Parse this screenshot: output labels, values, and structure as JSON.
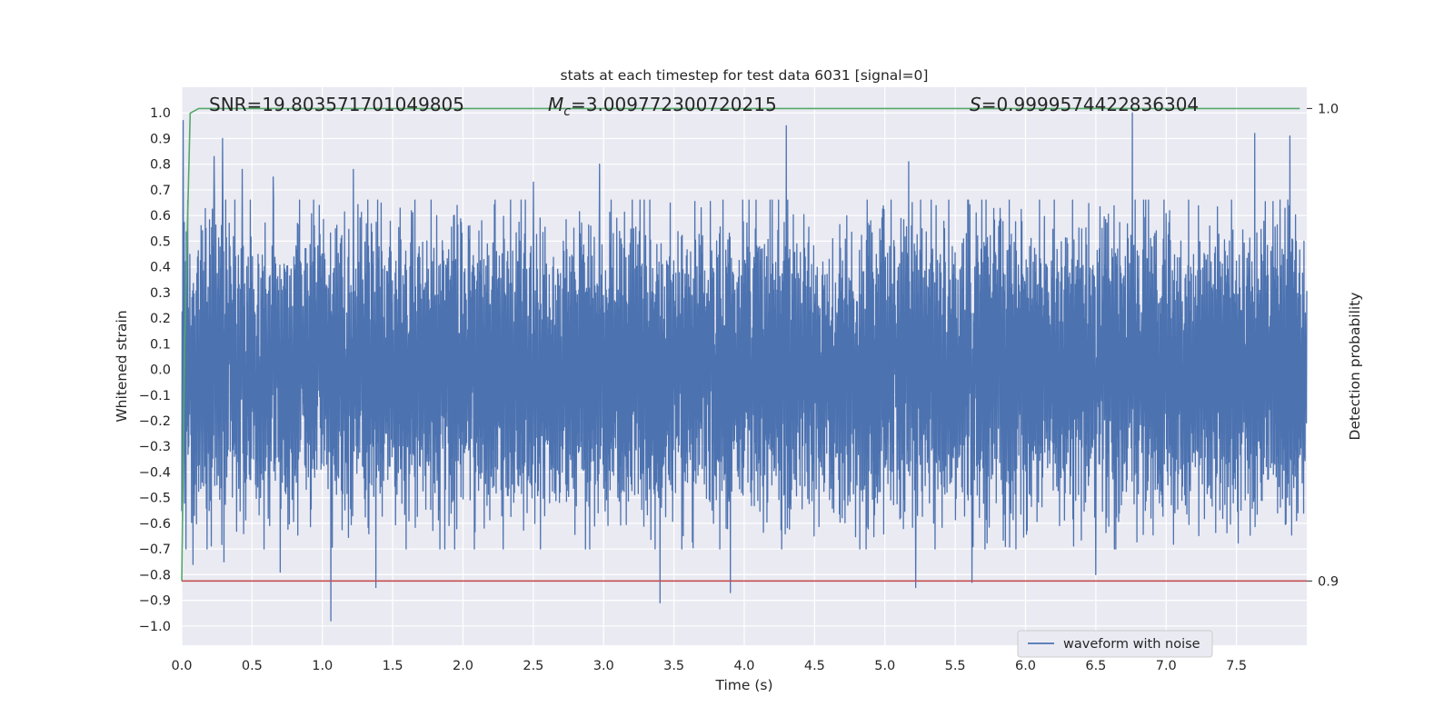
{
  "chart_data": {
    "type": "line",
    "title": "stats at each timestep for test data 6031 [signal=0]",
    "xlabel": "Time (s)",
    "ylabel": "Whitened strain",
    "y2label": "Detection probability",
    "xlim": [
      0,
      8.0
    ],
    "ylim": [
      -1.075,
      1.1
    ],
    "y2lim": [
      0.8864,
      1.0045
    ],
    "x_ticks": [
      "0.0",
      "0.5",
      "1.0",
      "1.5",
      "2.0",
      "2.5",
      "3.0",
      "3.5",
      "4.0",
      "4.5",
      "5.0",
      "5.5",
      "6.0",
      "6.5",
      "7.0",
      "7.5"
    ],
    "y_ticks": [
      "−1.0",
      "−0.9",
      "−0.8",
      "−0.7",
      "−0.6",
      "−0.5",
      "−0.4",
      "−0.3",
      "−0.2",
      "−0.1",
      "0.0",
      "0.1",
      "0.2",
      "0.3",
      "0.4",
      "0.5",
      "0.6",
      "0.7",
      "0.8",
      "0.9",
      "1.0"
    ],
    "y2_ticks": [
      "0.9",
      "1.0"
    ],
    "grid": true,
    "legend_position": "lower-right",
    "annotations": {
      "snr": "SNR=19.803571701049805",
      "mc_symbol": "M",
      "mc_subscript": "c",
      "mc_value": "=3.009772300720215",
      "s_symbol": "S",
      "s_value": "=0.9999574422836304"
    },
    "series": [
      {
        "name": "waveform with noise",
        "axis": "left",
        "color": "#4c72b0",
        "kind": "noise",
        "x_range": [
          0,
          8.0
        ],
        "typical_amplitude": 0.45,
        "min": -0.98,
        "max": 1.0,
        "peaks": [
          {
            "x": 0.01,
            "y": 0.97
          },
          {
            "x": 0.23,
            "y": 0.83
          },
          {
            "x": 0.29,
            "y": 0.9
          },
          {
            "x": 0.43,
            "y": 0.78
          },
          {
            "x": 0.65,
            "y": 0.75
          },
          {
            "x": 1.22,
            "y": 0.78
          },
          {
            "x": 2.5,
            "y": 0.73
          },
          {
            "x": 2.97,
            "y": 0.8
          },
          {
            "x": 4.3,
            "y": 0.95
          },
          {
            "x": 5.17,
            "y": 0.81
          },
          {
            "x": 6.76,
            "y": 1.0
          },
          {
            "x": 7.63,
            "y": 0.92
          },
          {
            "x": 7.88,
            "y": 0.91
          },
          {
            "x": 0.08,
            "y": -0.76
          },
          {
            "x": 0.3,
            "y": -0.75
          },
          {
            "x": 0.7,
            "y": -0.79
          },
          {
            "x": 1.06,
            "y": -0.98
          },
          {
            "x": 1.38,
            "y": -0.85
          },
          {
            "x": 3.4,
            "y": -0.91
          },
          {
            "x": 3.9,
            "y": -0.87
          },
          {
            "x": 5.22,
            "y": -0.85
          },
          {
            "x": 5.62,
            "y": -0.83
          },
          {
            "x": 6.5,
            "y": -0.8
          }
        ]
      },
      {
        "name": "",
        "axis": "right",
        "color": "#55a868",
        "points": [
          [
            0.0,
            0.9
          ],
          [
            0.02,
            0.95
          ],
          [
            0.06,
            0.999
          ],
          [
            0.12,
            1.0
          ],
          [
            7.95,
            1.0
          ]
        ]
      },
      {
        "name": "",
        "axis": "right",
        "color": "#c44e52",
        "points": [
          [
            0.0,
            0.9
          ],
          [
            8.0,
            0.9
          ]
        ]
      }
    ]
  }
}
